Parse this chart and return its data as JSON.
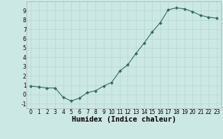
{
  "x": [
    0,
    1,
    2,
    3,
    4,
    5,
    6,
    7,
    8,
    9,
    10,
    11,
    12,
    13,
    14,
    15,
    16,
    17,
    18,
    19,
    20,
    21,
    22,
    23
  ],
  "y": [
    0.9,
    0.8,
    0.7,
    0.7,
    -0.3,
    -0.7,
    -0.4,
    0.2,
    0.4,
    0.9,
    1.3,
    2.5,
    3.2,
    4.4,
    5.5,
    6.7,
    7.7,
    9.1,
    9.3,
    9.2,
    8.9,
    8.5,
    8.3,
    8.2
  ],
  "line_color": "#2e6b5e",
  "marker": "D",
  "marker_size": 2.2,
  "bg_color": "#cce8e4",
  "grid_color": "#b8d8d4",
  "xlabel": "Humidex (Indice chaleur)",
  "xlim": [
    -0.5,
    23.5
  ],
  "ylim": [
    -1.5,
    10.0
  ],
  "xticks": [
    0,
    1,
    2,
    3,
    4,
    5,
    6,
    7,
    8,
    9,
    10,
    11,
    12,
    13,
    14,
    15,
    16,
    17,
    18,
    19,
    20,
    21,
    22,
    23
  ],
  "yticks": [
    -1,
    0,
    1,
    2,
    3,
    4,
    5,
    6,
    7,
    8,
    9
  ],
  "tick_fontsize": 5.5,
  "xlabel_fontsize": 7.5
}
